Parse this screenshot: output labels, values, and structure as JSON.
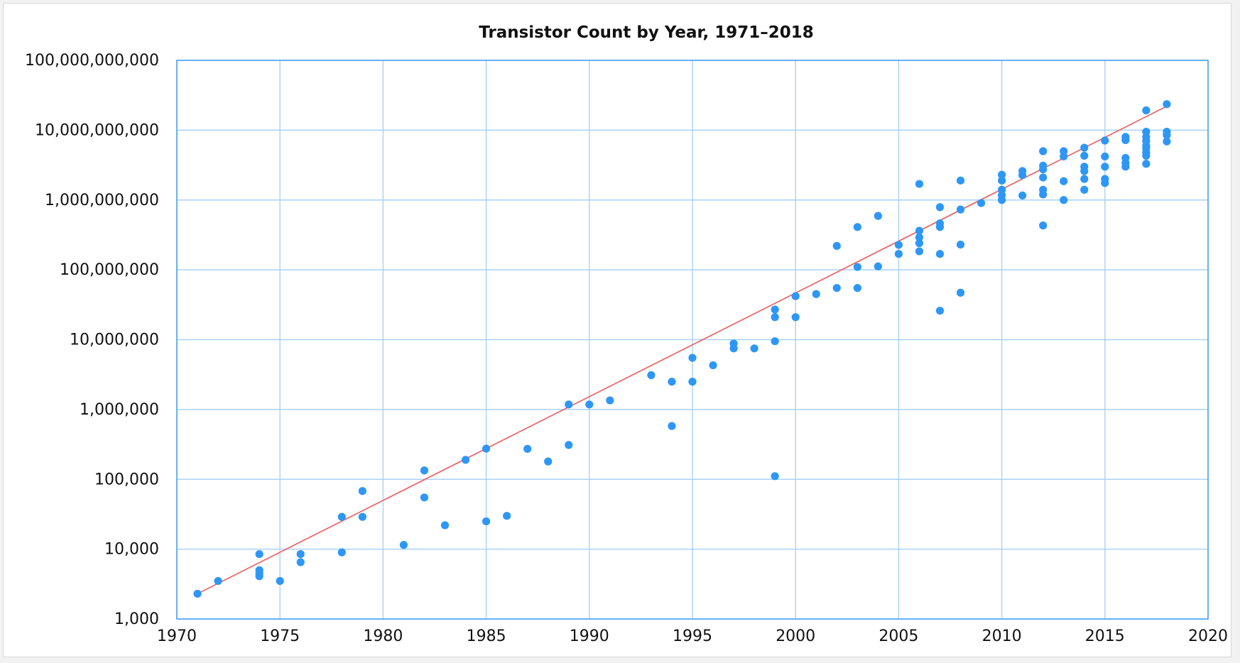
{
  "chart_data": {
    "type": "scatter",
    "title": "Transistor Count by Year, 1971–2018",
    "xlabel": "",
    "ylabel": "",
    "x_scale": "linear",
    "y_scale": "log",
    "xlim": [
      1970,
      2020
    ],
    "ylim": [
      1000,
      100000000000
    ],
    "x_ticks": [
      1970,
      1975,
      1980,
      1985,
      1990,
      1995,
      2000,
      2005,
      2010,
      2015,
      2020
    ],
    "x_tick_labels": [
      "1970",
      "1975",
      "1980",
      "1985",
      "1990",
      "1995",
      "2000",
      "2005",
      "2010",
      "2015",
      "2020"
    ],
    "y_ticks": [
      1000,
      10000,
      100000,
      1000000,
      10000000,
      100000000,
      1000000000,
      10000000000,
      100000000000
    ],
    "y_tick_labels": [
      "1,000",
      "10,000",
      "100,000",
      "1,000,000",
      "10,000,000",
      "100,000,000",
      "1,000,000,000",
      "10,000,000,000",
      "100,000,000,000"
    ],
    "grid": true,
    "colors": {
      "points": "#2e97f5",
      "trend": "#ef5a5a",
      "grid": "#a9d2f7",
      "frame": "#4aa3f2"
    },
    "series": [
      {
        "type": "scatter",
        "points": [
          [
            1971,
            2300
          ],
          [
            1972,
            3500
          ],
          [
            1974,
            4100
          ],
          [
            1974,
            4500
          ],
          [
            1974,
            5000
          ],
          [
            1974,
            8500
          ],
          [
            1975,
            3500
          ],
          [
            1976,
            6500
          ],
          [
            1976,
            8500
          ],
          [
            1978,
            9000
          ],
          [
            1978,
            29000
          ],
          [
            1979,
            29000
          ],
          [
            1979,
            68000
          ],
          [
            1981,
            11500
          ],
          [
            1982,
            55000
          ],
          [
            1982,
            134000
          ],
          [
            1983,
            22000
          ],
          [
            1984,
            190000
          ],
          [
            1985,
            25000
          ],
          [
            1985,
            275000
          ],
          [
            1986,
            30000
          ],
          [
            1987,
            273000
          ],
          [
            1988,
            180000
          ],
          [
            1989,
            1180000
          ],
          [
            1989,
            310000
          ],
          [
            1990,
            1180000
          ],
          [
            1991,
            1350000
          ],
          [
            1993,
            3100000
          ],
          [
            1994,
            2500000
          ],
          [
            1994,
            580000
          ],
          [
            1995,
            5500000
          ],
          [
            1995,
            2500000
          ],
          [
            1996,
            4300000
          ],
          [
            1997,
            7500000
          ],
          [
            1997,
            8800000
          ],
          [
            1998,
            7500000
          ],
          [
            1999,
            9500000
          ],
          [
            1999,
            21000000
          ],
          [
            1999,
            27000000
          ],
          [
            1999,
            111000
          ],
          [
            2000,
            21000000
          ],
          [
            2000,
            42000000
          ],
          [
            2001,
            45000000
          ],
          [
            2002,
            55000000
          ],
          [
            2002,
            220000000
          ],
          [
            2003,
            55000000
          ],
          [
            2003,
            110000000
          ],
          [
            2003,
            410000000
          ],
          [
            2004,
            112000000
          ],
          [
            2004,
            592000000
          ],
          [
            2005,
            169000000
          ],
          [
            2005,
            228000000
          ],
          [
            2006,
            184000000
          ],
          [
            2006,
            241000000
          ],
          [
            2006,
            291000000
          ],
          [
            2006,
            362000000
          ],
          [
            2006,
            1700000000
          ],
          [
            2007,
            26000000
          ],
          [
            2007,
            169000000
          ],
          [
            2007,
            411000000
          ],
          [
            2007,
            463000000
          ],
          [
            2007,
            789000000
          ],
          [
            2008,
            47000000
          ],
          [
            2008,
            230000000
          ],
          [
            2008,
            731000000
          ],
          [
            2008,
            1900000000
          ],
          [
            2009,
            904000000
          ],
          [
            2010,
            1000000000
          ],
          [
            2010,
            1170000000
          ],
          [
            2010,
            1400000000
          ],
          [
            2010,
            1900000000
          ],
          [
            2010,
            2300000000
          ],
          [
            2011,
            1160000000
          ],
          [
            2011,
            2270000000
          ],
          [
            2011,
            2600000000
          ],
          [
            2012,
            432000000
          ],
          [
            2012,
            1200000000
          ],
          [
            2012,
            1400000000
          ],
          [
            2012,
            2100000000
          ],
          [
            2012,
            2750000000
          ],
          [
            2012,
            3100000000
          ],
          [
            2012,
            5000000000
          ],
          [
            2013,
            1000000000
          ],
          [
            2013,
            1860000000
          ],
          [
            2013,
            4200000000
          ],
          [
            2013,
            5000000000
          ],
          [
            2014,
            1400000000
          ],
          [
            2014,
            2000000000
          ],
          [
            2014,
            2600000000
          ],
          [
            2014,
            3000000000
          ],
          [
            2014,
            4300000000
          ],
          [
            2014,
            5600000000
          ],
          [
            2015,
            1750000000
          ],
          [
            2015,
            2000000000
          ],
          [
            2015,
            3000000000
          ],
          [
            2015,
            4200000000
          ],
          [
            2015,
            7100000000
          ],
          [
            2016,
            3000000000
          ],
          [
            2016,
            3400000000
          ],
          [
            2016,
            4000000000
          ],
          [
            2016,
            7200000000
          ],
          [
            2016,
            8000000000
          ],
          [
            2017,
            3300000000
          ],
          [
            2017,
            4300000000
          ],
          [
            2017,
            4800000000
          ],
          [
            2017,
            5500000000
          ],
          [
            2017,
            6000000000
          ],
          [
            2017,
            7000000000
          ],
          [
            2017,
            8000000000
          ],
          [
            2017,
            9500000000
          ],
          [
            2017,
            19200000000
          ],
          [
            2018,
            6900000000
          ],
          [
            2018,
            8500000000
          ],
          [
            2018,
            9500000000
          ],
          [
            2018,
            23600000000
          ]
        ]
      },
      {
        "type": "line",
        "points": [
          [
            1971,
            2300
          ],
          [
            2018,
            22000000000
          ]
        ]
      }
    ]
  }
}
